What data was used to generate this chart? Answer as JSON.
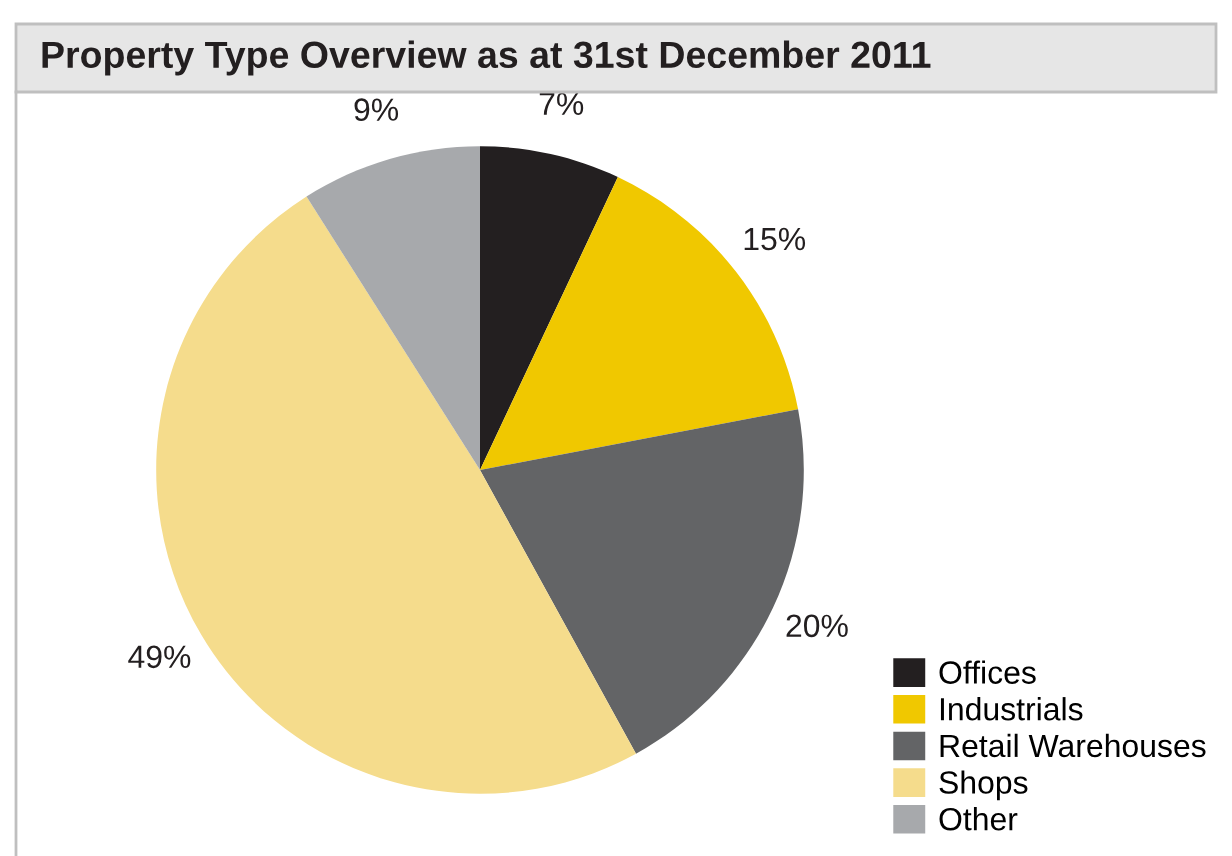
{
  "chart_data": {
    "type": "pie",
    "title": "Property Type Overview as at 31st December 2011",
    "categories": [
      "Offices",
      "Industrials",
      "Retail Warehouses",
      "Shops",
      "Other"
    ],
    "values": [
      7,
      15,
      20,
      49,
      9
    ],
    "colors": [
      "#231f20",
      "#f0c800",
      "#636466",
      "#f5dc8c",
      "#a7a9ac"
    ],
    "value_labels": [
      "7%",
      "15%",
      "20%",
      "49%",
      "9%"
    ],
    "legend": "bottom right"
  }
}
